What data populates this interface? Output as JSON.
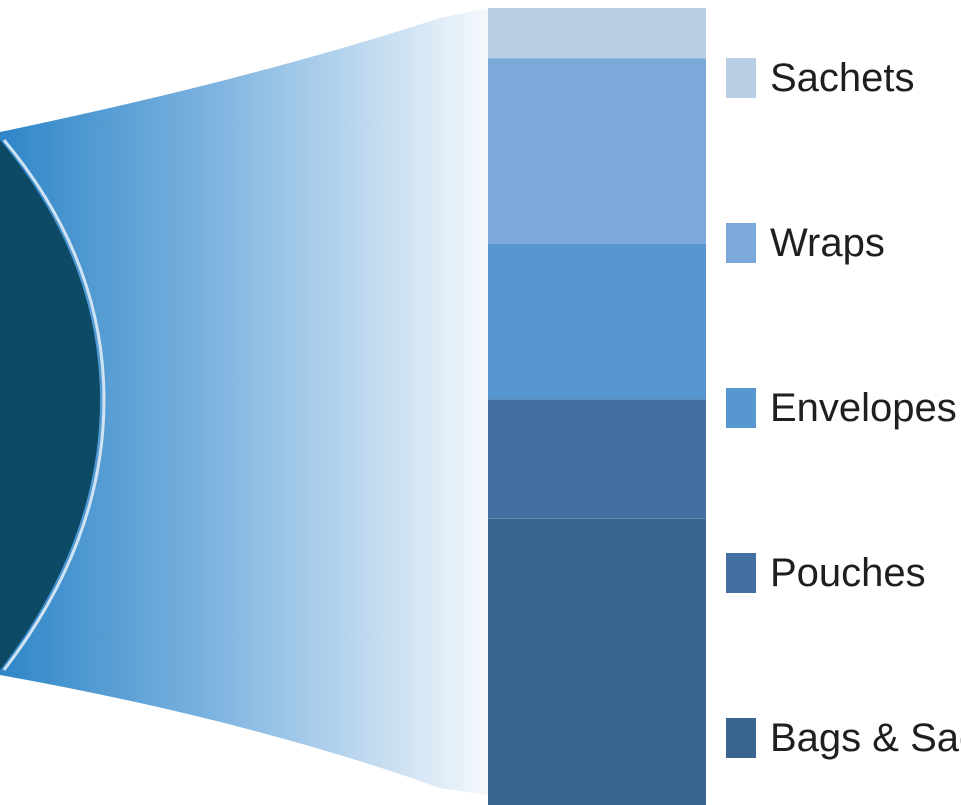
{
  "chart_data": {
    "type": "bar-of-pie",
    "title": "",
    "segments": [
      {
        "name": "Bags & Sacks",
        "share": 0.359,
        "color": "#3a6591"
      },
      {
        "name": "Pouches",
        "share": 0.15,
        "color": "#4470a1"
      },
      {
        "name": "Envelopes",
        "share": 0.195,
        "color": "#5796d1"
      },
      {
        "name": "Wraps",
        "share": 0.233,
        "color": "#7ba9d9"
      },
      {
        "name": "Sachets",
        "share": 0.063,
        "color": "#b9cfe6"
      }
    ],
    "pie_color": "#0c4a66",
    "connector_color": "#3b8bc8",
    "legend_position": "right"
  }
}
